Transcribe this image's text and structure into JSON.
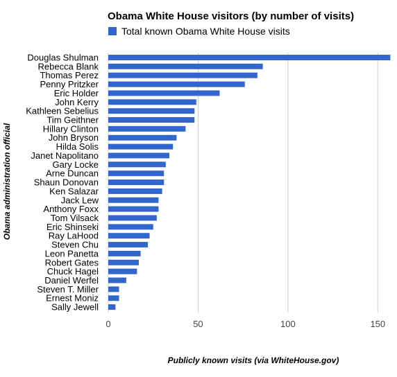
{
  "chart_data": {
    "type": "bar",
    "orientation": "horizontal",
    "title": "Obama White House visitors (by number of visits)",
    "xlabel": "Publicly known visits (via WhiteHouse.gov)",
    "ylabel": "Obama administration official",
    "xlim": [
      0,
      158
    ],
    "x_ticks": [
      0,
      50,
      100,
      150
    ],
    "grid": true,
    "legend_position": "top",
    "bar_color": "#3366cc",
    "grid_color": "#cccccc",
    "categories": [
      "Douglas Shulman",
      "Rebecca Blank",
      "Thomas Perez",
      "Penny Pritzker",
      "Eric Holder",
      "John Kerry",
      "Kathleen Sebelius",
      "Tim Geithner",
      "Hillary Clinton",
      "John Bryson",
      "Hilda Solis",
      "Janet Napolitano",
      "Gary Locke",
      "Arne Duncan",
      "Shaun Donovan",
      "Ken Salazar",
      "Jack Lew",
      "Anthony Foxx",
      "Tom Vilsack",
      "Eric Shinseki",
      "Ray LaHood",
      "Steven Chu",
      "Leon Panetta",
      "Robert Gates",
      "Chuck Hagel",
      "Daniel Werfel",
      "Steven T. Miller",
      "Ernest Moniz",
      "Sally Jewell"
    ],
    "series": [
      {
        "name": "Total known Obama White House visits",
        "values": [
          157,
          86,
          83,
          76,
          62,
          49,
          48,
          48,
          43,
          38,
          36,
          34,
          32,
          31,
          31,
          30,
          28,
          28,
          27,
          25,
          23,
          22,
          18,
          17,
          16,
          10,
          6,
          6,
          4
        ]
      }
    ]
  }
}
